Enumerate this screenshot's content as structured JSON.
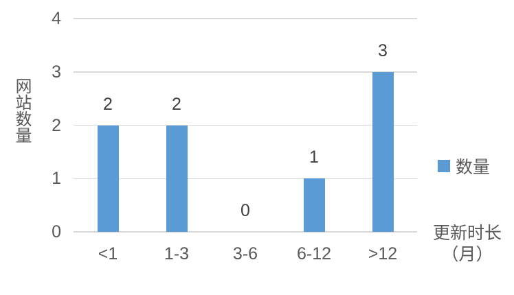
{
  "chart_data": {
    "type": "bar",
    "categories": [
      "<1",
      "1-3",
      "3-6",
      "6-12",
      ">12"
    ],
    "series": [
      {
        "name": "数量",
        "values": [
          2,
          2,
          0,
          1,
          3
        ]
      }
    ],
    "data_labels": [
      "2",
      "2",
      "0",
      "1",
      "3"
    ],
    "xlabel": "更新时长（月）",
    "ylabel": "网站数量",
    "ylim": [
      0,
      4
    ],
    "yticks": [
      0,
      1,
      2,
      3,
      4
    ],
    "y_tick_labels": [
      "0",
      "1",
      "2",
      "3",
      "4"
    ],
    "grid": true,
    "legend_position": "right"
  },
  "legend": {
    "label": "数量"
  },
  "colors": {
    "bar": "#5B9BD5",
    "gridline": "#D9D9D9",
    "axis_text": "#595959",
    "data_label": "#404040",
    "background": "#FFFFFF"
  }
}
